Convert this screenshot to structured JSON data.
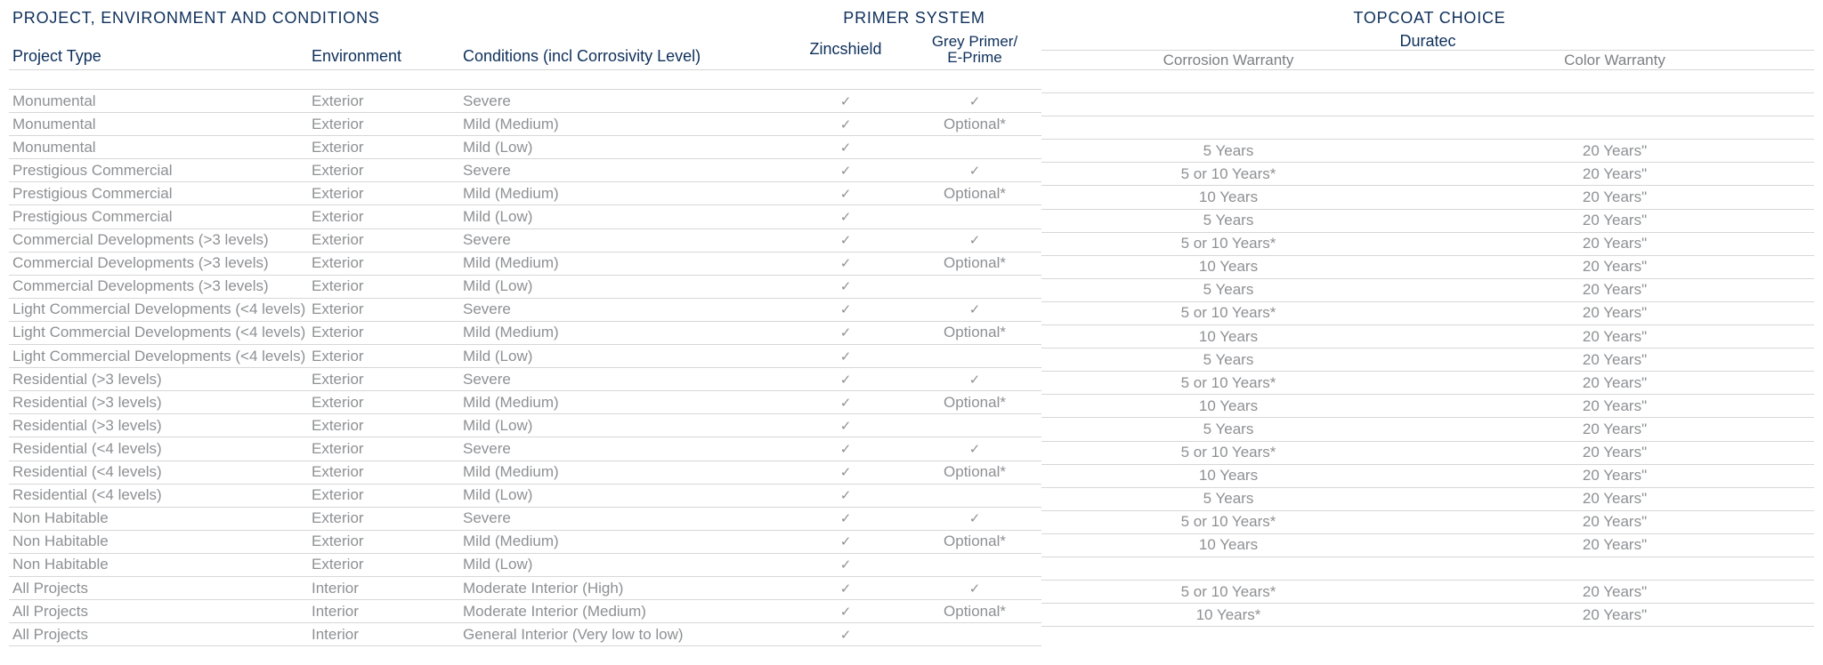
{
  "colors": {
    "header": "#0d2f5a",
    "body_text": "#8e9093",
    "subhead": "#7d7f82",
    "rule": "#d7d7d7",
    "background": "#ffffff"
  },
  "type": "table",
  "font_family": "Segoe UI / Helvetica Neue (light)",
  "check_glyph": "✓",
  "group_titles": {
    "pec": "PROJECT, ENVIRONMENT AND CONDITIONS",
    "primer": "PRIMER SYSTEM",
    "topcoat": "TOPCOAT CHOICE"
  },
  "headers": {
    "project_type": "Project Type",
    "environment": "Environment",
    "conditions": "Conditions (incl Corrosivity Level)",
    "zincshield": "Zincshield",
    "grey_primer_l1": "Grey Primer/",
    "grey_primer_l2": "E-Prime",
    "duratec": "Duratec",
    "corrosion": "Corrosion Warranty",
    "color": "Color Warranty"
  },
  "rows": [
    {
      "pt": "Monumental",
      "env": "Exterior",
      "con": "Severe",
      "zs": true,
      "gp": "✓",
      "cw": "",
      "col": ""
    },
    {
      "pt": "Monumental",
      "env": "Exterior",
      "con": "Mild (Medium)",
      "zs": true,
      "gp": "Optional*",
      "cw": "",
      "col": ""
    },
    {
      "pt": "Monumental",
      "env": "Exterior",
      "con": "Mild (Low)",
      "zs": true,
      "gp": "",
      "cw": "",
      "col": ""
    },
    {
      "pt": "Prestigious Commercial",
      "env": "Exterior",
      "con": "Severe",
      "zs": true,
      "gp": "✓",
      "cw": "5 Years",
      "col": "20 Years\""
    },
    {
      "pt": "Prestigious Commercial",
      "env": "Exterior",
      "con": "Mild (Medium)",
      "zs": true,
      "gp": "Optional*",
      "cw": "5 or 10 Years*",
      "col": "20 Years\""
    },
    {
      "pt": "Prestigious Commercial",
      "env": "Exterior",
      "con": "Mild (Low)",
      "zs": true,
      "gp": "",
      "cw": "10 Years",
      "col": "20 Years\""
    },
    {
      "pt": "Commercial Developments (>3 levels)",
      "env": "Exterior",
      "con": "Severe",
      "zs": true,
      "gp": "✓",
      "cw": "5 Years",
      "col": "20 Years\""
    },
    {
      "pt": "Commercial Developments (>3 levels)",
      "env": "Exterior",
      "con": "Mild (Medium)",
      "zs": true,
      "gp": "Optional*",
      "cw": "5 or 10 Years*",
      "col": "20 Years\""
    },
    {
      "pt": "Commercial Developments (>3 levels)",
      "env": "Exterior",
      "con": "Mild (Low)",
      "zs": true,
      "gp": "",
      "cw": "10 Years",
      "col": "20 Years\""
    },
    {
      "pt": "Light Commercial Developments (<4 levels)",
      "env": "Exterior",
      "con": "Severe",
      "zs": true,
      "gp": "✓",
      "cw": "5 Years",
      "col": "20 Years\""
    },
    {
      "pt": "Light Commercial Developments (<4 levels)",
      "env": "Exterior",
      "con": "Mild (Medium)",
      "zs": true,
      "gp": "Optional*",
      "cw": "5 or 10 Years*",
      "col": "20 Years\""
    },
    {
      "pt": "Light Commercial Developments (<4 levels)",
      "env": "Exterior",
      "con": "Mild (Low)",
      "zs": true,
      "gp": "",
      "cw": "10 Years",
      "col": "20 Years\""
    },
    {
      "pt": "Residential (>3 levels)",
      "env": "Exterior",
      "con": "Severe",
      "zs": true,
      "gp": "✓",
      "cw": "5 Years",
      "col": "20 Years\""
    },
    {
      "pt": "Residential (>3 levels)",
      "env": "Exterior",
      "con": "Mild (Medium)",
      "zs": true,
      "gp": "Optional*",
      "cw": "5 or 10 Years*",
      "col": "20 Years\""
    },
    {
      "pt": "Residential (>3 levels)",
      "env": "Exterior",
      "con": "Mild (Low)",
      "zs": true,
      "gp": "",
      "cw": "10 Years",
      "col": "20 Years\""
    },
    {
      "pt": "Residential (<4 levels)",
      "env": "Exterior",
      "con": "Severe",
      "zs": true,
      "gp": "✓",
      "cw": "5 Years",
      "col": "20 Years\""
    },
    {
      "pt": "Residential (<4 levels)",
      "env": "Exterior",
      "con": "Mild (Medium)",
      "zs": true,
      "gp": "Optional*",
      "cw": "5 or 10 Years*",
      "col": "20 Years\""
    },
    {
      "pt": "Residential (<4 levels)",
      "env": "Exterior",
      "con": "Mild (Low)",
      "zs": true,
      "gp": "",
      "cw": "10 Years",
      "col": "20 Years\""
    },
    {
      "pt": "Non Habitable",
      "env": "Exterior",
      "con": "Severe",
      "zs": true,
      "gp": "✓",
      "cw": "5 Years",
      "col": "20 Years\""
    },
    {
      "pt": "Non Habitable",
      "env": "Exterior",
      "con": "Mild (Medium)",
      "zs": true,
      "gp": "Optional*",
      "cw": "5 or 10 Years*",
      "col": "20 Years\""
    },
    {
      "pt": "Non Habitable",
      "env": "Exterior",
      "con": "Mild (Low)",
      "zs": true,
      "gp": "",
      "cw": "10 Years",
      "col": "20 Years\""
    },
    {
      "pt": "All Projects",
      "env": "Interior",
      "con": "Moderate Interior (High)",
      "zs": true,
      "gp": "✓",
      "cw": "",
      "col": ""
    },
    {
      "pt": "All Projects",
      "env": "Interior",
      "con": "Moderate Interior (Medium)",
      "zs": true,
      "gp": "Optional*",
      "cw": "5 or 10 Years*",
      "col": "20 Years\""
    },
    {
      "pt": "All Projects",
      "env": "Interior",
      "con": "General Interior (Very low to low)",
      "zs": true,
      "gp": "",
      "cw": "10 Years*",
      "col": "20 Years\""
    }
  ]
}
